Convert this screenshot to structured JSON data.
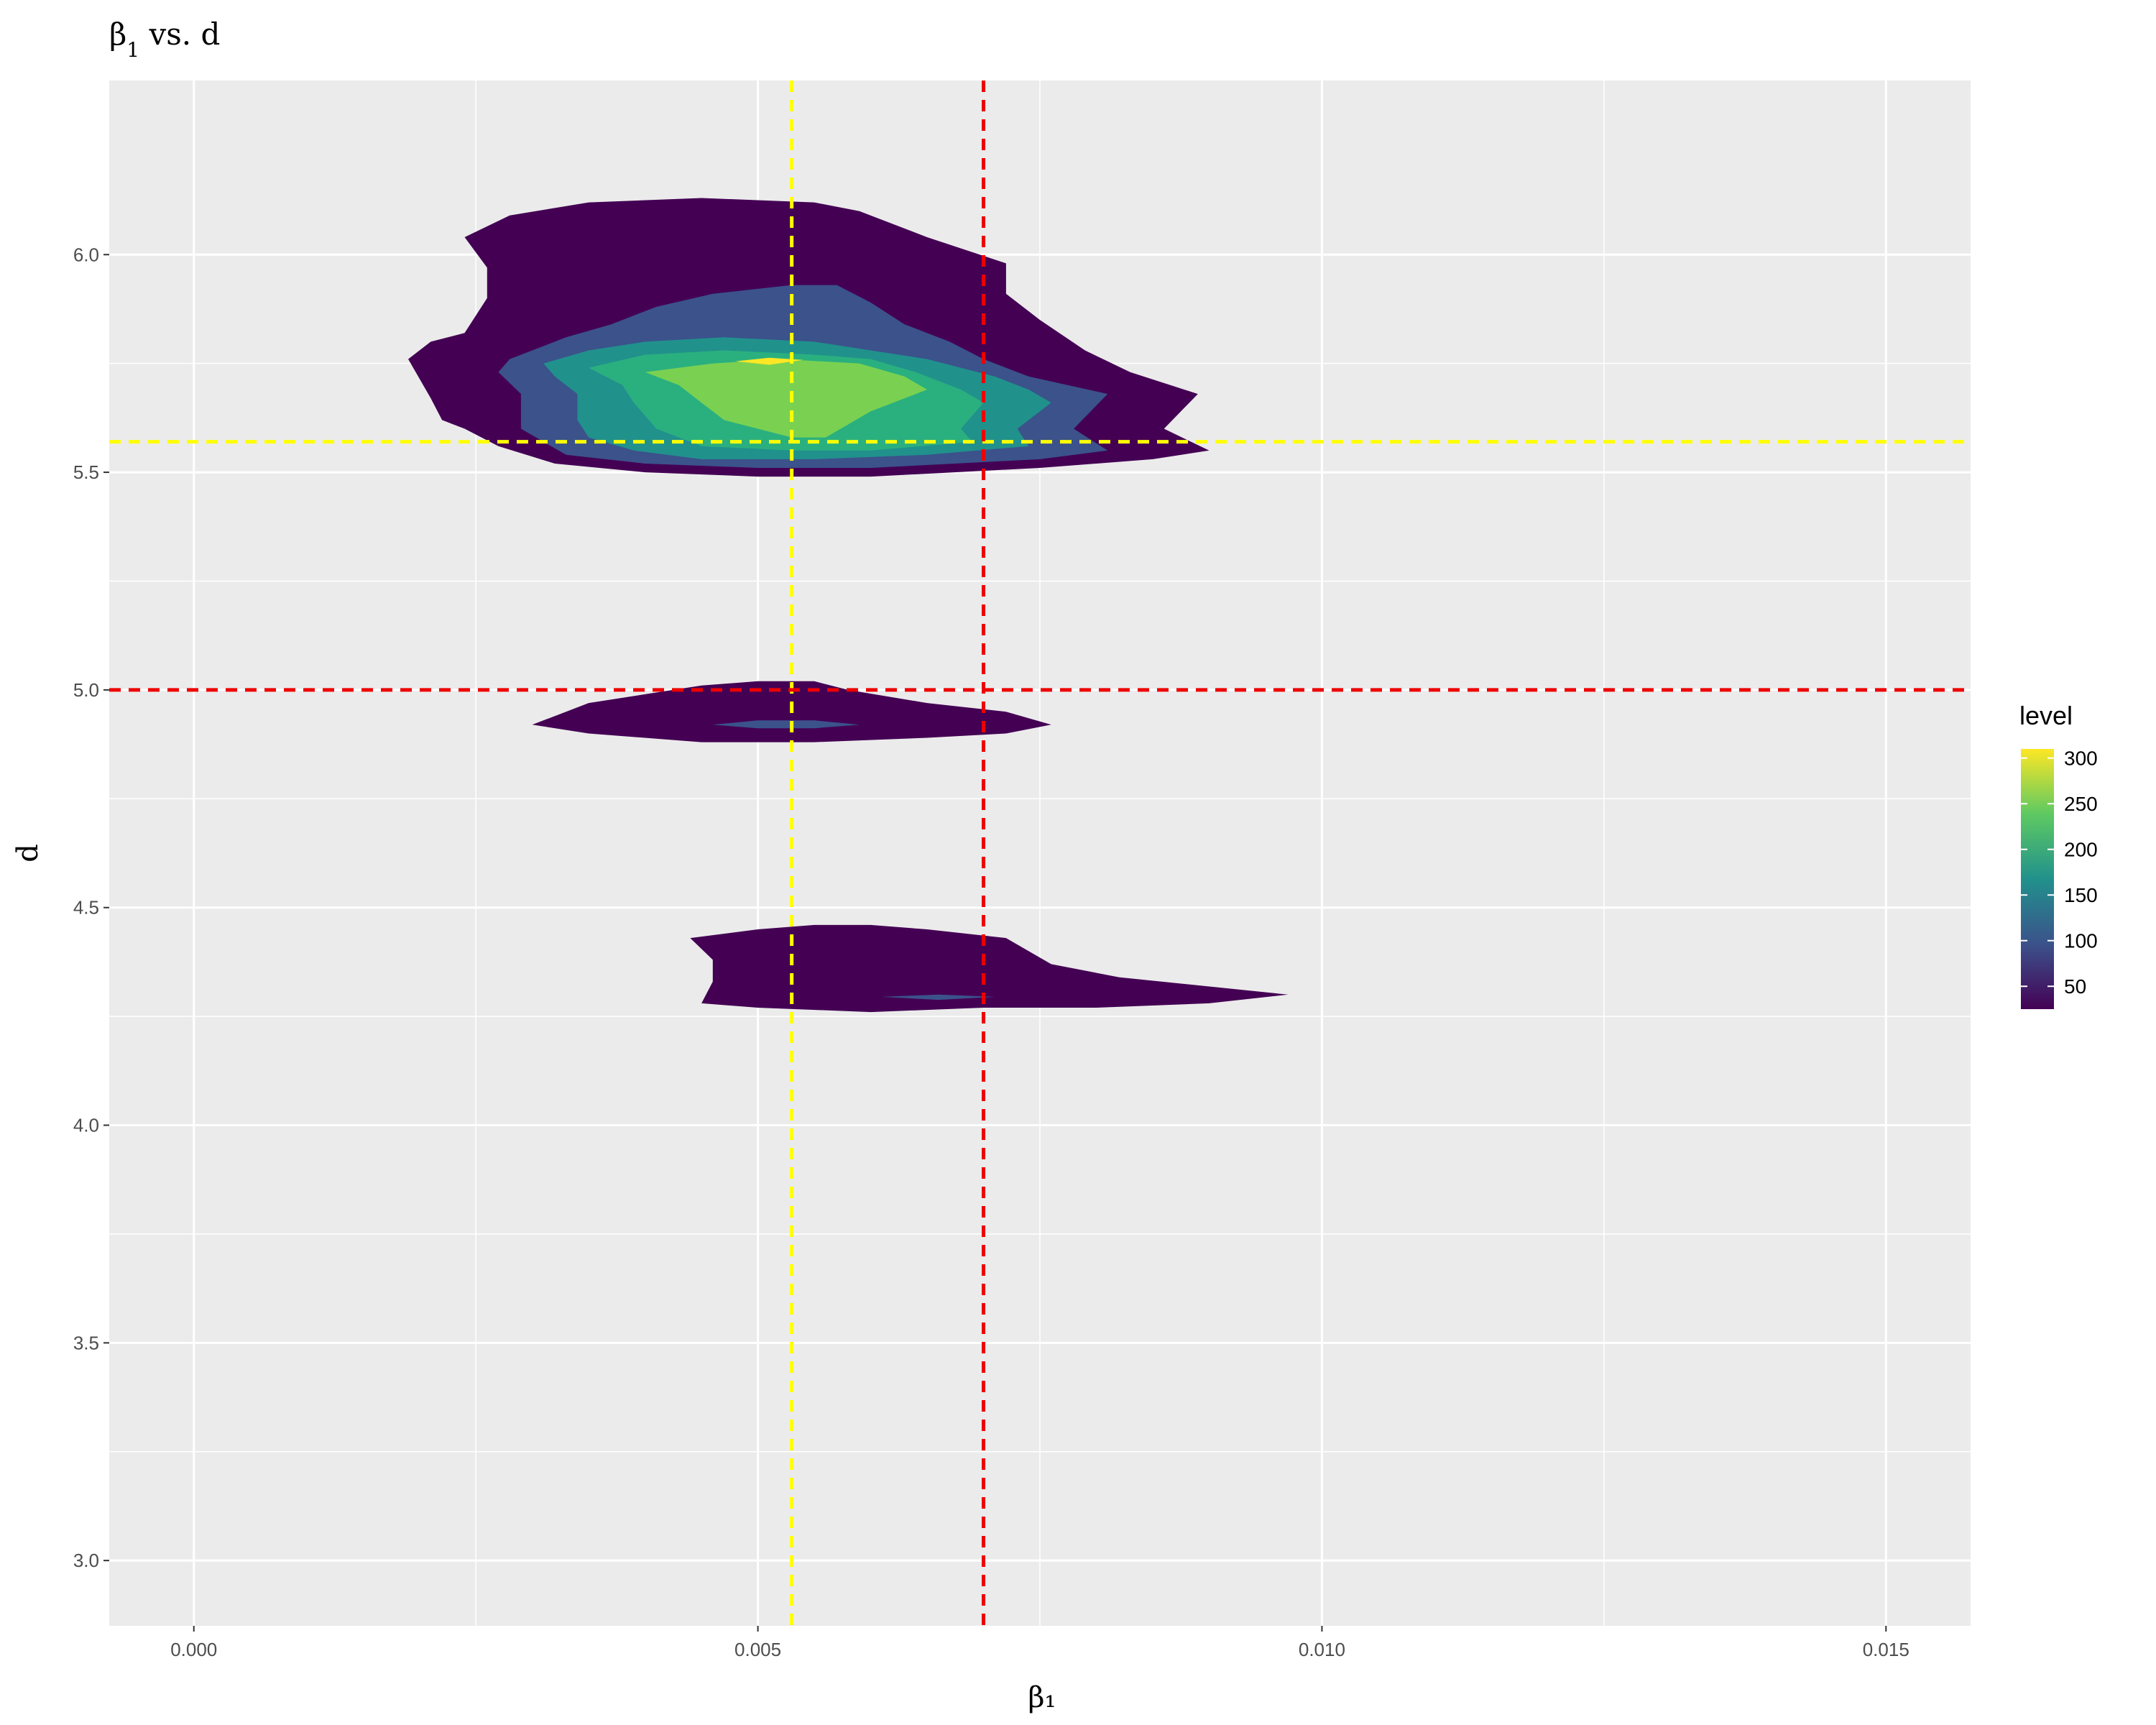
{
  "chart_data": {
    "type": "contour",
    "title": "β₁ vs. d",
    "title_parts": {
      "beta": "β",
      "sub": "1",
      "rest": " vs. d"
    },
    "xlabel": "β₁",
    "ylabel": "d",
    "xlim": [
      -0.00075,
      0.01575
    ],
    "ylim": [
      2.85,
      6.4
    ],
    "x_ticks": [
      0.0,
      0.005,
      0.01,
      0.015
    ],
    "x_tick_labels": [
      "0.000",
      "0.005",
      "0.010",
      "0.015"
    ],
    "y_ticks": [
      3.0,
      3.5,
      4.0,
      4.5,
      5.0,
      5.5,
      6.0
    ],
    "y_tick_labels": [
      "3.0",
      "3.5",
      "4.0",
      "4.5",
      "5.0",
      "5.5",
      "6.0"
    ],
    "grid": true,
    "background": "#ebebeb",
    "reference_lines": [
      {
        "orientation": "vertical",
        "value": 0.0053,
        "color": "#ffff00",
        "style": "dashed"
      },
      {
        "orientation": "horizontal",
        "value": 5.57,
        "color": "#ffff00",
        "style": "dashed"
      },
      {
        "orientation": "vertical",
        "value": 0.007,
        "color": "#ee0000",
        "style": "dashed"
      },
      {
        "orientation": "horizontal",
        "value": 5.0,
        "color": "#ee0000",
        "style": "dashed"
      }
    ],
    "legend": {
      "title": "level",
      "position": "right",
      "breaks": [
        50,
        100,
        150,
        200,
        250,
        300
      ],
      "range": [
        25,
        310
      ],
      "colors": [
        "#440154",
        "#3b528b",
        "#21918c",
        "#5ec962",
        "#fde725"
      ]
    },
    "contours": [
      {
        "level": 50,
        "color": "#440154",
        "points": [
          [
            0.0024,
            6.04
          ],
          [
            0.0028,
            6.09
          ],
          [
            0.0035,
            6.12
          ],
          [
            0.0045,
            6.13
          ],
          [
            0.0055,
            6.12
          ],
          [
            0.0059,
            6.1
          ],
          [
            0.0065,
            6.04
          ],
          [
            0.0072,
            5.98
          ],
          [
            0.0072,
            5.91
          ],
          [
            0.0075,
            5.85
          ],
          [
            0.0079,
            5.78
          ],
          [
            0.0083,
            5.73
          ],
          [
            0.0089,
            5.68
          ],
          [
            0.0086,
            5.6
          ],
          [
            0.009,
            5.55
          ],
          [
            0.0085,
            5.53
          ],
          [
            0.0075,
            5.51
          ],
          [
            0.006,
            5.49
          ],
          [
            0.005,
            5.49
          ],
          [
            0.004,
            5.5
          ],
          [
            0.0032,
            5.52
          ],
          [
            0.0027,
            5.56
          ],
          [
            0.0024,
            5.6
          ],
          [
            0.0022,
            5.62
          ],
          [
            0.0021,
            5.67
          ],
          [
            0.0019,
            5.76
          ],
          [
            0.0021,
            5.8
          ],
          [
            0.0024,
            5.82
          ],
          [
            0.0026,
            5.9
          ],
          [
            0.0026,
            5.97
          ]
        ]
      },
      {
        "level": 100,
        "color": "#3b528b",
        "points": [
          [
            0.0028,
            5.76
          ],
          [
            0.0033,
            5.81
          ],
          [
            0.0037,
            5.84
          ],
          [
            0.0041,
            5.88
          ],
          [
            0.0046,
            5.91
          ],
          [
            0.0053,
            5.93
          ],
          [
            0.0057,
            5.93
          ],
          [
            0.006,
            5.89
          ],
          [
            0.0063,
            5.84
          ],
          [
            0.0067,
            5.8
          ],
          [
            0.007,
            5.76
          ],
          [
            0.0074,
            5.72
          ],
          [
            0.0081,
            5.68
          ],
          [
            0.0078,
            5.6
          ],
          [
            0.0081,
            5.55
          ],
          [
            0.0075,
            5.53
          ],
          [
            0.006,
            5.51
          ],
          [
            0.005,
            5.51
          ],
          [
            0.004,
            5.52
          ],
          [
            0.0033,
            5.54
          ],
          [
            0.0029,
            5.6
          ],
          [
            0.0029,
            5.68
          ],
          [
            0.0027,
            5.73
          ]
        ]
      },
      {
        "level": 150,
        "color": "#21918c",
        "points": [
          [
            0.0031,
            5.75
          ],
          [
            0.0035,
            5.78
          ],
          [
            0.004,
            5.8
          ],
          [
            0.0047,
            5.81
          ],
          [
            0.0055,
            5.8
          ],
          [
            0.006,
            5.78
          ],
          [
            0.0065,
            5.76
          ],
          [
            0.0068,
            5.74
          ],
          [
            0.0071,
            5.72
          ],
          [
            0.0074,
            5.69
          ],
          [
            0.0076,
            5.66
          ],
          [
            0.0073,
            5.6
          ],
          [
            0.0074,
            5.56
          ],
          [
            0.0065,
            5.54
          ],
          [
            0.0055,
            5.53
          ],
          [
            0.0045,
            5.53
          ],
          [
            0.0039,
            5.55
          ],
          [
            0.0035,
            5.58
          ],
          [
            0.0034,
            5.62
          ],
          [
            0.0034,
            5.68
          ],
          [
            0.0032,
            5.72
          ]
        ]
      },
      {
        "level": 200,
        "color": "#2ab07f",
        "points": [
          [
            0.0035,
            5.74
          ],
          [
            0.004,
            5.77
          ],
          [
            0.0047,
            5.78
          ],
          [
            0.0055,
            5.77
          ],
          [
            0.006,
            5.76
          ],
          [
            0.0064,
            5.73
          ],
          [
            0.0068,
            5.69
          ],
          [
            0.007,
            5.66
          ],
          [
            0.0068,
            5.6
          ],
          [
            0.0069,
            5.57
          ],
          [
            0.006,
            5.55
          ],
          [
            0.0053,
            5.55
          ],
          [
            0.0045,
            5.56
          ],
          [
            0.0041,
            5.6
          ],
          [
            0.0039,
            5.66
          ],
          [
            0.0038,
            5.7
          ]
        ]
      },
      {
        "level": 250,
        "color": "#7ad151",
        "points": [
          [
            0.004,
            5.73
          ],
          [
            0.0046,
            5.75
          ],
          [
            0.0052,
            5.76
          ],
          [
            0.0059,
            5.75
          ],
          [
            0.0063,
            5.72
          ],
          [
            0.0065,
            5.69
          ],
          [
            0.0062,
            5.66
          ],
          [
            0.006,
            5.64
          ],
          [
            0.0058,
            5.61
          ],
          [
            0.0056,
            5.58
          ],
          [
            0.0053,
            5.58
          ],
          [
            0.005,
            5.6
          ],
          [
            0.0047,
            5.62
          ],
          [
            0.0045,
            5.66
          ],
          [
            0.0043,
            5.7
          ]
        ]
      },
      {
        "level": 300,
        "color": "#fde725",
        "points": [
          [
            0.0048,
            5.755
          ],
          [
            0.0051,
            5.763
          ],
          [
            0.0054,
            5.758
          ],
          [
            0.0051,
            5.747
          ]
        ]
      },
      {
        "level": 50,
        "color": "#440154",
        "points": [
          [
            0.003,
            4.92
          ],
          [
            0.0035,
            4.97
          ],
          [
            0.004,
            4.99
          ],
          [
            0.0045,
            5.01
          ],
          [
            0.005,
            5.02
          ],
          [
            0.0055,
            5.02
          ],
          [
            0.0058,
            5.0
          ],
          [
            0.0065,
            4.97
          ],
          [
            0.0072,
            4.95
          ],
          [
            0.0076,
            4.92
          ],
          [
            0.0072,
            4.9
          ],
          [
            0.0065,
            4.89
          ],
          [
            0.0055,
            4.88
          ],
          [
            0.0045,
            4.88
          ],
          [
            0.0035,
            4.9
          ]
        ]
      },
      {
        "level": 100,
        "color": "#3b528b",
        "points": [
          [
            0.0046,
            4.92
          ],
          [
            0.005,
            4.93
          ],
          [
            0.0055,
            4.93
          ],
          [
            0.0059,
            4.92
          ],
          [
            0.0055,
            4.912
          ],
          [
            0.005,
            4.912
          ]
        ]
      },
      {
        "level": 50,
        "color": "#440154",
        "points": [
          [
            0.0044,
            4.43
          ],
          [
            0.005,
            4.45
          ],
          [
            0.0055,
            4.46
          ],
          [
            0.006,
            4.46
          ],
          [
            0.0065,
            4.45
          ],
          [
            0.0072,
            4.43
          ],
          [
            0.0074,
            4.4
          ],
          [
            0.0076,
            4.37
          ],
          [
            0.0082,
            4.34
          ],
          [
            0.0097,
            4.3
          ],
          [
            0.009,
            4.28
          ],
          [
            0.008,
            4.27
          ],
          [
            0.007,
            4.27
          ],
          [
            0.006,
            4.26
          ],
          [
            0.005,
            4.27
          ],
          [
            0.0045,
            4.28
          ],
          [
            0.0046,
            4.33
          ],
          [
            0.0046,
            4.38
          ]
        ]
      },
      {
        "level": 100,
        "color": "#3b528b",
        "points": [
          [
            0.0061,
            4.295
          ],
          [
            0.0066,
            4.3
          ],
          [
            0.0071,
            4.295
          ],
          [
            0.0066,
            4.288
          ]
        ]
      }
    ]
  }
}
